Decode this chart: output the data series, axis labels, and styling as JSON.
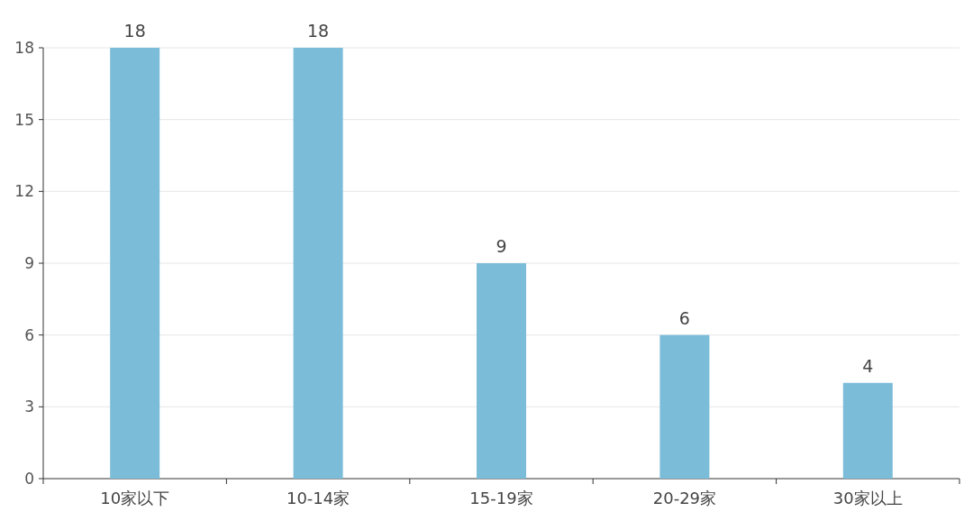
{
  "chart_data": {
    "type": "bar",
    "categories": [
      "10家以下",
      "10-14家",
      "15-19家",
      "20-29家",
      "30家以上"
    ],
    "values": [
      18,
      18,
      9,
      6,
      4
    ],
    "color": "#7bbcd9",
    "ylim": [
      0,
      18
    ],
    "yticks": [
      0,
      3,
      6,
      9,
      12,
      15,
      18
    ],
    "grid": "y",
    "data_labels": true
  }
}
